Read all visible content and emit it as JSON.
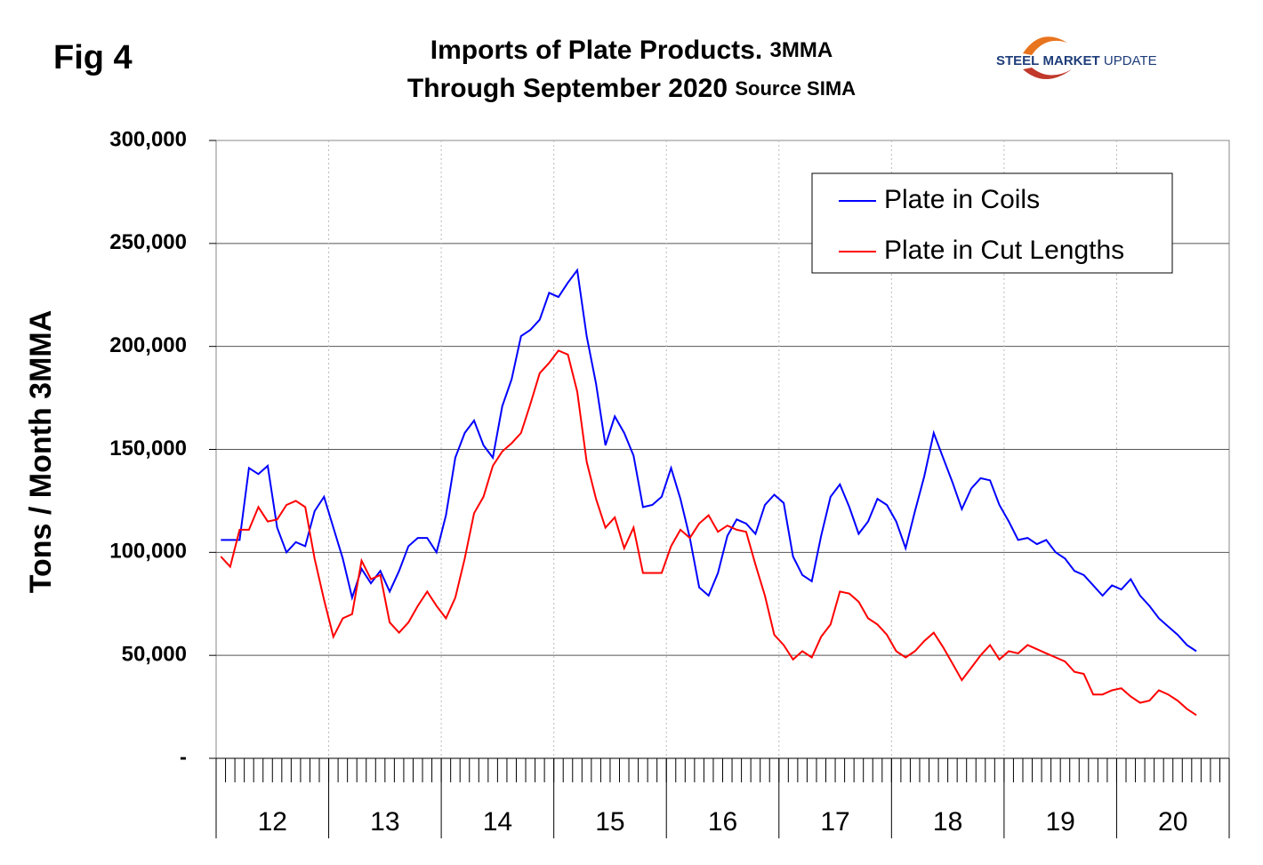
{
  "chart_data": {
    "type": "line",
    "figure_label": "Fig 4",
    "title": [
      "Imports of Plate Products.",
      "3MMA"
    ],
    "subtitle": [
      "Through September 2020",
      "Source SIMA"
    ],
    "logo": [
      "STEEL",
      "MARKET",
      "UPDATE"
    ],
    "y_label": "Tons / Month 3MMA",
    "x_group_labels": [
      "12",
      "13",
      "14",
      "15",
      "16",
      "17",
      "18",
      "19",
      "20"
    ],
    "ylim": [
      0,
      300000
    ],
    "yticks": [
      {
        "value": 0,
        "label": "-"
      },
      {
        "value": 50000,
        "label": "50,000"
      },
      {
        "value": 100000,
        "label": "100,000"
      },
      {
        "value": 150000,
        "label": "150,000"
      },
      {
        "value": 200000,
        "label": "200,000"
      },
      {
        "value": 250000,
        "label": "250,000"
      },
      {
        "value": 300000,
        "label": "300,000"
      }
    ],
    "grid": true,
    "legend": "upper right",
    "series": [
      {
        "name": "Plate in Coils",
        "color": "#0000ff",
        "values": [
          106000,
          106000,
          106000,
          141000,
          138000,
          142000,
          112000,
          100000,
          105000,
          103000,
          120000,
          127000,
          112000,
          97000,
          78000,
          92000,
          85000,
          91000,
          81000,
          91000,
          103000,
          107000,
          107000,
          100000,
          118000,
          146000,
          158000,
          164000,
          152000,
          146000,
          171000,
          184000,
          205000,
          208000,
          213000,
          226000,
          224000,
          231000,
          237000,
          205000,
          182000,
          152000,
          166000,
          158000,
          147000,
          122000,
          123000,
          127000,
          141000,
          126000,
          107000,
          83000,
          79000,
          90000,
          108000,
          116000,
          114000,
          109000,
          123000,
          128000,
          124000,
          98000,
          89000,
          86000,
          108000,
          127000,
          133000,
          122000,
          109000,
          115000,
          126000,
          123000,
          115000,
          102000,
          120000,
          137000,
          158000,
          146000,
          134000,
          121000,
          131000,
          136000,
          135000,
          123000,
          115000,
          106000,
          107000,
          104000,
          106000,
          100000,
          97000,
          91000,
          89000,
          84000,
          79000,
          84000,
          82000,
          87000,
          79000,
          74000,
          68000,
          64000,
          60000,
          55000,
          52000
        ]
      },
      {
        "name": "Plate in Cut Lengths",
        "color": "#ff0000",
        "values": [
          98000,
          93000,
          111000,
          111000,
          122000,
          115000,
          116000,
          123000,
          125000,
          122000,
          97000,
          77000,
          59000,
          68000,
          70000,
          96000,
          87000,
          89000,
          66000,
          61000,
          66000,
          74000,
          81000,
          74000,
          68000,
          78000,
          97000,
          119000,
          127000,
          142000,
          149000,
          153000,
          158000,
          172000,
          187000,
          192000,
          198000,
          196000,
          178000,
          144000,
          126000,
          112000,
          117000,
          102000,
          112000,
          90000,
          90000,
          90000,
          103000,
          111000,
          107000,
          114000,
          118000,
          110000,
          113000,
          111000,
          110000,
          94000,
          79000,
          60000,
          55000,
          48000,
          52000,
          49000,
          59000,
          65000,
          81000,
          80000,
          76000,
          68000,
          65000,
          60000,
          52000,
          49000,
          52000,
          57000,
          61000,
          54000,
          46000,
          38000,
          44000,
          50000,
          55000,
          48000,
          52000,
          51000,
          55000,
          53000,
          51000,
          49000,
          47000,
          42000,
          41000,
          31000,
          31000,
          33000,
          34000,
          30000,
          27000,
          28000,
          33000,
          31000,
          28000,
          24000,
          21000
        ]
      }
    ]
  }
}
